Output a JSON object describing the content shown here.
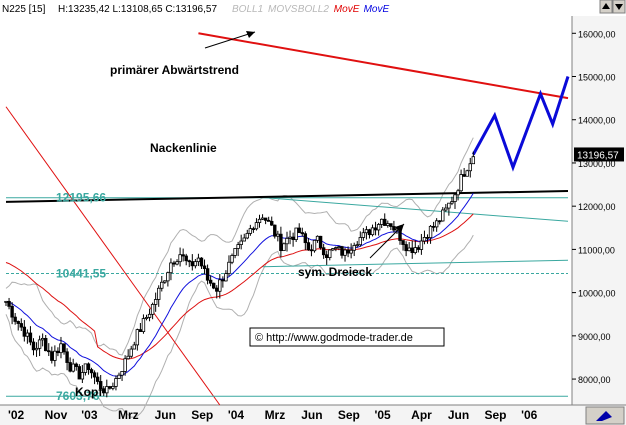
{
  "header": {
    "symbol": "N225 [15]",
    "ohlc": "H:13235,42 L:13108,65 C:13196,57",
    "indicators": [
      {
        "label": "BOLL1",
        "color": "#b8b8b8"
      },
      {
        "label": "MOVS",
        "color": "#b8b8b8"
      },
      {
        "label": "BOLL2",
        "color": "#b8b8b8"
      },
      {
        "label": "MovE",
        "color": "#e00000"
      },
      {
        "label": "MovE",
        "color": "#0000e0"
      }
    ]
  },
  "colors": {
    "price": "#000000",
    "ema_red": "#dd1111",
    "ema_blue": "#1111dd",
    "bollinger": "#b0b0b0",
    "cyan": "#3aa8a0",
    "projection": "#0a0ad8",
    "resistance": "#e01010",
    "panel": "#d4d0c8",
    "last_value_box": "#000000"
  },
  "annotations": {
    "trend": "primärer Abwärtstrend",
    "neckline": "Nackenlinie",
    "triangle": "sym. Dreieck",
    "head": "Kopf",
    "copyright": "© http://www.godmode-trader.de"
  },
  "chart_data": {
    "type": "candlestick",
    "x_ticks": [
      "'02",
      "Nov",
      "'03",
      "Mrz",
      "Jun",
      "Sep",
      "'04",
      "Mrz",
      "Jun",
      "Sep",
      "'05",
      "Apr",
      "Jun",
      "Sep",
      "'06"
    ],
    "y_ticks": [
      "16000,00",
      "15000,00",
      "14000,00",
      "13000,00",
      "12000,00",
      "11000,00",
      "10000,00",
      "9000,00",
      "8000,00"
    ],
    "ylim": [
      7400,
      16400
    ],
    "levels": [
      {
        "label": "12195,66",
        "value": 12195.66
      },
      {
        "label": "10441,55",
        "value": 10441.55
      },
      {
        "label": "7603,76",
        "value": 7603.76
      }
    ],
    "last_value": "13196,57",
    "close_path": [
      [
        0,
        9800
      ],
      [
        3,
        9400
      ],
      [
        6,
        9100
      ],
      [
        9,
        8700
      ],
      [
        12,
        8900
      ],
      [
        15,
        8500
      ],
      [
        18,
        8800
      ],
      [
        21,
        8300
      ],
      [
        24,
        8100
      ],
      [
        27,
        8300
      ],
      [
        30,
        7900
      ],
      [
        33,
        7700
      ],
      [
        36,
        8000
      ],
      [
        39,
        8400
      ],
      [
        42,
        8900
      ],
      [
        45,
        9300
      ],
      [
        48,
        9700
      ],
      [
        51,
        10200
      ],
      [
        54,
        10700
      ],
      [
        57,
        10900
      ],
      [
        60,
        10600
      ],
      [
        63,
        10800
      ],
      [
        66,
        10300
      ],
      [
        69,
        10100
      ],
      [
        72,
        10500
      ],
      [
        75,
        10900
      ],
      [
        78,
        11200
      ],
      [
        81,
        11600
      ],
      [
        84,
        11800
      ],
      [
        87,
        11500
      ],
      [
        90,
        11100
      ],
      [
        93,
        11300
      ],
      [
        96,
        11400
      ],
      [
        99,
        11000
      ],
      [
        102,
        11200
      ],
      [
        105,
        10900
      ],
      [
        108,
        11000
      ],
      [
        111,
        10900
      ],
      [
        114,
        11200
      ],
      [
        117,
        11300
      ],
      [
        120,
        11500
      ],
      [
        123,
        11700
      ],
      [
        126,
        11600
      ],
      [
        129,
        11300
      ],
      [
        132,
        11000
      ],
      [
        135,
        11100
      ],
      [
        138,
        11400
      ],
      [
        141,
        11600
      ],
      [
        144,
        11900
      ],
      [
        147,
        12300
      ],
      [
        150,
        12800
      ],
      [
        153,
        13196
      ]
    ],
    "projection_path": [
      [
        153,
        13196
      ],
      [
        160,
        14100
      ],
      [
        166,
        12900
      ],
      [
        175,
        14600
      ],
      [
        179,
        13900
      ],
      [
        184,
        15000
      ]
    ],
    "resistance_line": [
      [
        63,
        16000
      ],
      [
        184,
        14500
      ]
    ],
    "neckline": [
      [
        0,
        12100
      ],
      [
        184,
        12350
      ]
    ],
    "triangle_upper": [
      [
        84,
        12200
      ],
      [
        184,
        11650
      ]
    ],
    "triangle_lower": [
      [
        84,
        10600
      ],
      [
        184,
        10750
      ]
    ]
  }
}
